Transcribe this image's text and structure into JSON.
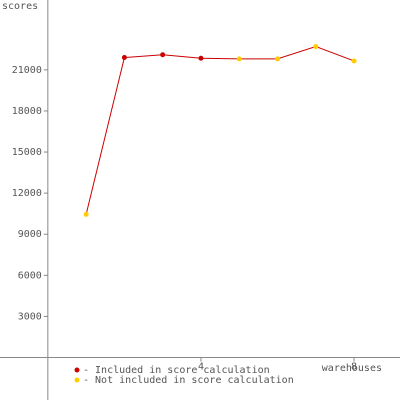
{
  "chart_data": {
    "type": "line",
    "y_label": "scores",
    "x_label": "warehouses",
    "x": [
      1,
      2,
      3,
      4,
      5,
      6,
      7,
      8
    ],
    "values": [
      10450,
      21900,
      22100,
      21850,
      21800,
      21800,
      22700,
      21650
    ],
    "included": [
      false,
      true,
      true,
      true,
      false,
      false,
      false,
      false
    ],
    "line_color": "#cc0000",
    "legend": [
      {
        "label": "- Included in score calculation",
        "color": "#cc0000"
      },
      {
        "label": "- Not included in score calculation",
        "color": "#ffcc00"
      }
    ],
    "xlim": [
      -1.25,
      9.2
    ],
    "ylim": [
      -3100,
      26100
    ],
    "xticks": [
      4,
      8
    ],
    "yticks": [
      3000,
      6000,
      9000,
      12000,
      15000,
      18000,
      21000
    ]
  }
}
